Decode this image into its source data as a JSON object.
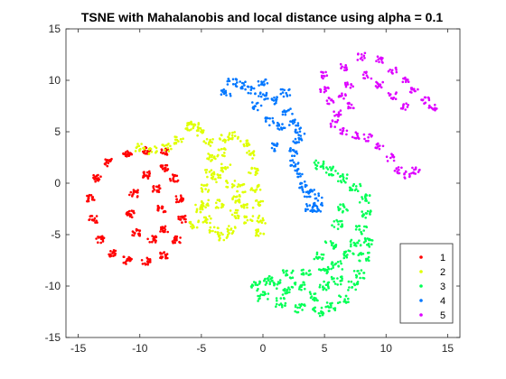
{
  "chart_data": {
    "type": "scatter",
    "title": "TSNE with Mahalanobis and local distance using alpha = 0.1",
    "xlabel": "",
    "ylabel": "",
    "xlim": [
      -16,
      16
    ],
    "ylim": [
      -15,
      15
    ],
    "xticks": [
      -15,
      -10,
      -5,
      0,
      5,
      10,
      15
    ],
    "yticks": [
      -15,
      -10,
      -5,
      0,
      5,
      10,
      15
    ],
    "xtick_labels": [
      "-15",
      "-10",
      "-5",
      "0",
      "5",
      "10",
      "15"
    ],
    "ytick_labels": [
      "-15",
      "-10",
      "-5",
      "0",
      "5",
      "10",
      "15"
    ],
    "grid": false,
    "legend_position": "bottom-right",
    "series": [
      {
        "name": "1",
        "color": "#ff0000",
        "anchors": [
          [
            -8.0,
            3.0
          ],
          [
            -9.5,
            3.2
          ],
          [
            -11.0,
            2.8
          ],
          [
            -12.5,
            2.0
          ],
          [
            -13.5,
            0.5
          ],
          [
            -14.0,
            -1.5
          ],
          [
            -13.8,
            -3.5
          ],
          [
            -13.2,
            -5.5
          ],
          [
            -12.2,
            -6.8
          ],
          [
            -11.0,
            -7.5
          ],
          [
            -9.5,
            -7.6
          ],
          [
            -8.0,
            -7.0
          ],
          [
            -7.0,
            -5.5
          ],
          [
            -6.6,
            -3.5
          ],
          [
            -6.8,
            -1.5
          ],
          [
            -7.2,
            0.5
          ],
          [
            -8.0,
            1.5
          ],
          [
            -9.5,
            0.8
          ],
          [
            -10.5,
            -1.0
          ],
          [
            -10.8,
            -3.0
          ],
          [
            -10.3,
            -4.8
          ],
          [
            -9.0,
            -5.4
          ],
          [
            -8.0,
            -4.5
          ],
          [
            -8.2,
            -2.5
          ],
          [
            -8.6,
            -0.5
          ]
        ],
        "jitter": 0.35,
        "copies": 16
      },
      {
        "name": "2",
        "color": "#dfff00",
        "anchors": [
          [
            -10.0,
            3.5
          ],
          [
            -9.0,
            3.2
          ],
          [
            -7.8,
            3.5
          ],
          [
            -6.8,
            4.2
          ],
          [
            -6.2,
            5.5
          ],
          [
            -5.6,
            5.6
          ],
          [
            -5.0,
            5.0
          ],
          [
            -4.4,
            4.0
          ],
          [
            -4.2,
            2.5
          ],
          [
            -4.3,
            1.0
          ],
          [
            -4.6,
            -0.5
          ],
          [
            -4.8,
            -2.0
          ],
          [
            -4.6,
            -3.5
          ],
          [
            -4.0,
            -4.6
          ],
          [
            -3.2,
            -5.2
          ],
          [
            -2.6,
            -4.5
          ],
          [
            -2.3,
            -3.0
          ],
          [
            -2.2,
            -1.5
          ],
          [
            -2.6,
            0.0
          ],
          [
            -3.0,
            1.5
          ],
          [
            -3.4,
            3.0
          ],
          [
            -3.2,
            4.3
          ],
          [
            -2.4,
            4.6
          ],
          [
            -1.5,
            4.0
          ],
          [
            -1.0,
            2.8
          ],
          [
            -0.8,
            1.2
          ],
          [
            -0.6,
            -0.5
          ],
          [
            -0.4,
            -2.0
          ],
          [
            -0.2,
            -3.5
          ],
          [
            -0.3,
            -4.8
          ],
          [
            -1.2,
            -3.5
          ],
          [
            -1.6,
            -2.0
          ],
          [
            -1.8,
            -0.5
          ],
          [
            -5.2,
            -2.5
          ],
          [
            -5.6,
            -4.0
          ],
          [
            -3.5,
            -2.0
          ],
          [
            -3.8,
            0.5
          ]
        ],
        "jitter": 0.4,
        "copies": 12
      },
      {
        "name": "3",
        "color": "#00ff55",
        "anchors": [
          [
            4.5,
            1.8
          ],
          [
            5.5,
            1.2
          ],
          [
            6.5,
            0.5
          ],
          [
            7.5,
            -0.5
          ],
          [
            8.3,
            -1.5
          ],
          [
            8.4,
            -3.0
          ],
          [
            8.0,
            -4.5
          ],
          [
            7.5,
            -5.8
          ],
          [
            7.0,
            -7.0
          ],
          [
            6.0,
            -8.0
          ],
          [
            5.0,
            -8.5
          ],
          [
            3.5,
            -8.5
          ],
          [
            2.0,
            -8.8
          ],
          [
            0.5,
            -9.5
          ],
          [
            -0.5,
            -10.0
          ],
          [
            0.0,
            -11.0
          ],
          [
            1.5,
            -11.6
          ],
          [
            3.0,
            -12.2
          ],
          [
            4.5,
            -12.5
          ],
          [
            5.5,
            -12.0
          ],
          [
            6.5,
            -11.2
          ],
          [
            7.3,
            -10.0
          ],
          [
            7.8,
            -8.8
          ],
          [
            8.2,
            -7.2
          ],
          [
            8.6,
            -5.8
          ],
          [
            6.5,
            -2.5
          ],
          [
            6.0,
            -4.0
          ],
          [
            5.5,
            -6.0
          ],
          [
            4.5,
            -7.0
          ],
          [
            3.0,
            -10.0
          ],
          [
            5.0,
            -10.0
          ],
          [
            6.0,
            -9.5
          ],
          [
            2.0,
            -10.5
          ],
          [
            1.0,
            -9.8
          ],
          [
            4.0,
            -11.0
          ]
        ],
        "jitter": 0.45,
        "copies": 14
      },
      {
        "name": "4",
        "color": "#0077ff",
        "anchors": [
          [
            -3.0,
            8.8
          ],
          [
            -2.5,
            9.8
          ],
          [
            -1.8,
            9.5
          ],
          [
            -1.0,
            9.0
          ],
          [
            0.0,
            8.5
          ],
          [
            1.0,
            8.0
          ],
          [
            2.0,
            7.0
          ],
          [
            2.5,
            6.0
          ],
          [
            3.0,
            5.0
          ],
          [
            2.8,
            4.0
          ],
          [
            2.5,
            3.0
          ],
          [
            2.5,
            2.0
          ],
          [
            2.8,
            1.0
          ],
          [
            3.2,
            -0.2
          ],
          [
            3.6,
            -1.0
          ],
          [
            4.2,
            -1.0
          ],
          [
            4.5,
            -1.8
          ],
          [
            4.3,
            -2.5
          ],
          [
            3.8,
            -2.4
          ],
          [
            0.5,
            6.0
          ],
          [
            1.5,
            5.5
          ],
          [
            -0.5,
            7.5
          ],
          [
            1.0,
            3.5
          ],
          [
            0.0,
            9.8
          ],
          [
            1.8,
            8.8
          ]
        ],
        "jitter": 0.4,
        "copies": 12
      },
      {
        "name": "5",
        "color": "#dd00ff",
        "anchors": [
          [
            5.0,
            10.5
          ],
          [
            5.0,
            9.0
          ],
          [
            5.5,
            8.0
          ],
          [
            6.0,
            6.8
          ],
          [
            5.8,
            5.8
          ],
          [
            6.5,
            5.0
          ],
          [
            7.5,
            4.6
          ],
          [
            8.5,
            4.4
          ],
          [
            9.5,
            3.6
          ],
          [
            10.3,
            2.5
          ],
          [
            11.0,
            1.2
          ],
          [
            11.8,
            0.8
          ],
          [
            12.4,
            1.2
          ],
          [
            6.5,
            11.3
          ],
          [
            8.0,
            12.3
          ],
          [
            9.5,
            12.0
          ],
          [
            10.5,
            11.0
          ],
          [
            11.5,
            10.0
          ],
          [
            12.3,
            9.0
          ],
          [
            13.2,
            8.0
          ],
          [
            13.8,
            7.3
          ],
          [
            8.5,
            10.5
          ],
          [
            9.5,
            9.5
          ],
          [
            10.5,
            8.5
          ],
          [
            11.5,
            7.5
          ],
          [
            7.0,
            9.5
          ],
          [
            6.5,
            8.5
          ],
          [
            7.2,
            7.5
          ]
        ],
        "jitter": 0.35,
        "copies": 10
      }
    ]
  }
}
